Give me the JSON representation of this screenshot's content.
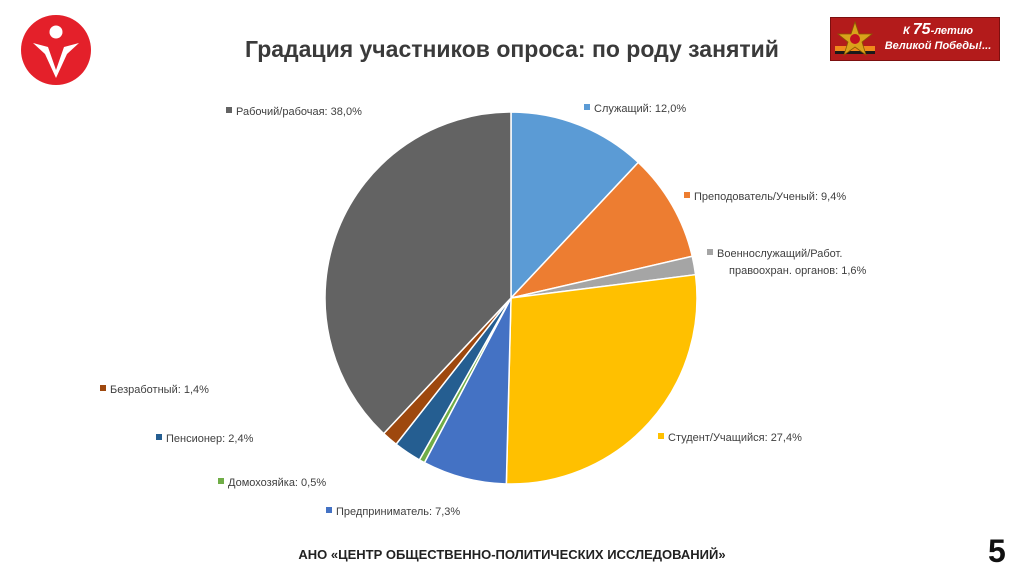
{
  "title": "Градация участников опроса: по роду занятий",
  "badge": {
    "line1_prefix": "К ",
    "line1_number": "75",
    "line1_suffix": "-летию",
    "line2": "Великой Победы!..."
  },
  "footer": "АНО «ЦЕНТР ОБЩЕСТВЕННО-ПОЛИТИЧЕСКИХ ИССЛЕДОВАНИЙ»",
  "page_number": "5",
  "colors": {
    "logo": "#e4202a",
    "badge": "#b31b1b",
    "ribbon_orange": "#f08a1c"
  },
  "icons": {
    "logo": "organization-logo-icon",
    "badge": "order-star-icon"
  },
  "chart_data": {
    "type": "pie",
    "title": "",
    "start_angle_deg": 0,
    "direction": "clockwise",
    "legend": "none",
    "slices": [
      {
        "label": "Служащий: 12,0%",
        "value": 12.0,
        "color": "#5b9bd5"
      },
      {
        "label": "Преподователь/Ученый: 9,4%",
        "value": 9.4,
        "color": "#ed7d31"
      },
      {
        "label": "Военнослужащий/Работ.\nправоохран. органов: 1,6%",
        "value": 1.6,
        "color": "#a5a5a5"
      },
      {
        "label": "Студент/Учащийся: 27,4%",
        "value": 27.4,
        "color": "#ffc000"
      },
      {
        "label": "Предприниматель: 7,3%",
        "value": 7.3,
        "color": "#4472c4"
      },
      {
        "label": "Домохозяйка: 0,5%",
        "value": 0.5,
        "color": "#70ad47"
      },
      {
        "label": "Пенсионер: 2,4%",
        "value": 2.4,
        "color": "#255e91"
      },
      {
        "label": "Безработный: 1,4%",
        "value": 1.4,
        "color": "#9e480e"
      },
      {
        "label": "Рабочий/рабочая: 38,0%",
        "value": 38.0,
        "color": "#636363"
      }
    ]
  }
}
